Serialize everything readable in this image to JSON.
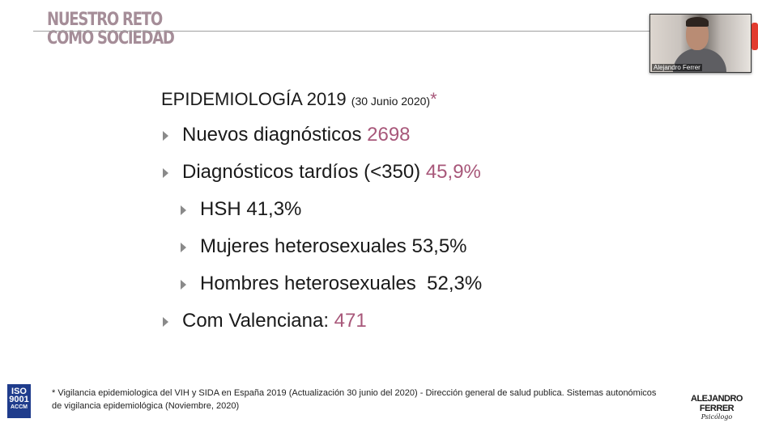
{
  "slide": {
    "title_lines": [
      "NUESTRO RETO",
      "COMO SOCIEDAD"
    ],
    "heading": {
      "main": "EPIDEMIOLOGÍA 2019 ",
      "date": "(30 Junio 2020)",
      "asterisk": "*"
    },
    "items": [
      {
        "label": "Nuevos diagnósticos ",
        "value": "2698",
        "level": 1
      },
      {
        "label": "Diagnósticos tardíos (<350) ",
        "value": "45,9%",
        "level": 1
      },
      {
        "label": "HSH 41,3%",
        "value": "",
        "level": 2
      },
      {
        "label": "Mujeres heterosexuales 53,5%",
        "value": "",
        "level": 2
      },
      {
        "label": "Hombres heterosexuales  52,3%",
        "value": "",
        "level": 2
      },
      {
        "label": "Com Valenciana: ",
        "value": "471",
        "level": 1
      }
    ],
    "footnote_lines": [
      "* Vigilancia epidemiologica del VIH y SIDA en España 2019 (Actualización 30 junio del 2020) - Dirección general de salud publica. Sistemas autonómicos",
      "de vigilancia epidemiológica (Noviembre, 2020)"
    ],
    "iso_logo": [
      "ISO",
      "9001",
      "ACCM"
    ],
    "brand": {
      "name": "ALEJANDRO FERRER",
      "subtitle": "Psicólogo"
    }
  },
  "video": {
    "participant_name": "Alejandro Ferrer"
  },
  "colors": {
    "accent": "#a8587a",
    "title": "#a58d98"
  }
}
